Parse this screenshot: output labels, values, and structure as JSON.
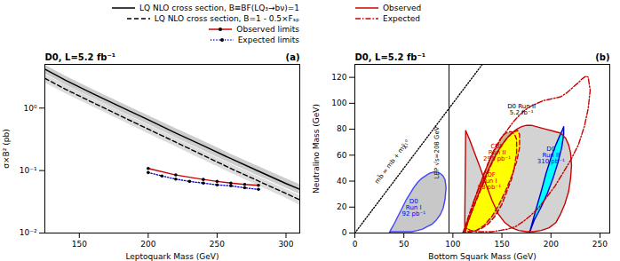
{
  "chart_data": [
    {
      "type": "line",
      "title": "D0, L=5.2 fb⁻¹",
      "annotations": [
        {
          "text": "(a)"
        }
      ],
      "xlabel": "Leptoquark Mass (GeV)",
      "ylabel": "σ×B² (pb)",
      "log": "y",
      "xlim": [
        125,
        310
      ],
      "xticks": [
        150,
        200,
        250,
        300
      ],
      "ylim": [
        0.01,
        5.011872336272722
      ],
      "yticks": [
        {
          "value": 0.01,
          "label": "10⁻²"
        },
        {
          "value": 0.1,
          "label": "10⁻¹"
        },
        {
          "value": 1,
          "label": "10⁰"
        }
      ],
      "grid": false,
      "legend": "upper right",
      "series": [
        {
          "type": "band",
          "color": "#cccccc",
          "x": [
            125,
            140,
            160,
            180,
            200,
            220,
            240,
            260,
            280,
            300,
            310
          ],
          "lower": [
            3.55,
            2.35,
            1.43,
            0.88,
            0.545,
            0.335,
            0.208,
            0.129,
            0.082,
            0.052,
            0.042
          ],
          "upper": [
            4.9,
            3.25,
            1.98,
            1.22,
            0.76,
            0.47,
            0.295,
            0.183,
            0.116,
            0.074,
            0.06
          ]
        },
        {
          "type": "band",
          "color": "#dddddd",
          "x": [
            125,
            140,
            160,
            180,
            200,
            220,
            240,
            260,
            280,
            300,
            310
          ],
          "lower": [
            2.55,
            1.7,
            1.04,
            0.638,
            0.39,
            0.241,
            0.148,
            0.091,
            0.057,
            0.036,
            0.028
          ],
          "upper": [
            3.45,
            2.32,
            1.41,
            0.87,
            0.535,
            0.33,
            0.203,
            0.126,
            0.079,
            0.05,
            0.04
          ]
        },
        {
          "name": "LQ NLO cross section, B≡BF(LQ₃→bν)=1",
          "type": "line",
          "color": "#000000",
          "line_style": "solid",
          "x": [
            125,
            140,
            160,
            180,
            200,
            220,
            240,
            260,
            280,
            300,
            310
          ],
          "values": [
            4.2,
            2.8,
            1.7,
            1.05,
            0.65,
            0.4,
            0.25,
            0.155,
            0.098,
            0.062,
            0.05
          ]
        },
        {
          "name": "LQ NLO cross section, B=1 - 0.5×Fₛₚ",
          "type": "line",
          "color": "#000000",
          "line_style": "dashed",
          "x": [
            125,
            140,
            160,
            180,
            200,
            220,
            240,
            260,
            280,
            300,
            310
          ],
          "values": [
            3.0,
            2.0,
            1.22,
            0.75,
            0.46,
            0.285,
            0.175,
            0.108,
            0.068,
            0.043,
            0.034
          ]
        },
        {
          "name": "Observed limits",
          "type": "line",
          "color": "#cc0000",
          "line_style": "solid",
          "marker": "dot",
          "x": [
            200,
            220,
            240,
            250,
            260,
            270,
            280
          ],
          "values": [
            0.108,
            0.085,
            0.072,
            0.067,
            0.063,
            0.06,
            0.058
          ]
        },
        {
          "name": "Expected limits",
          "type": "line",
          "color": "#0000cc",
          "line_style": "dotted",
          "marker": "dot",
          "x": [
            200,
            210,
            220,
            230,
            240,
            250,
            260,
            270,
            280
          ],
          "values": [
            0.093,
            0.082,
            0.073,
            0.067,
            0.063,
            0.059,
            0.057,
            0.053,
            0.05
          ]
        }
      ]
    },
    {
      "type": "polygon",
      "title": "D0, L=5.2 fb⁻¹",
      "annotations": [
        {
          "text": "(b)"
        },
        {
          "text": "D0 Run II\n5.2 fb⁻¹",
          "x": 170,
          "y": 95,
          "color": "#000000"
        },
        {
          "text": "D0\nRun II\n310 pb⁻¹",
          "x": 200,
          "y": 60,
          "color": "#0000ff"
        },
        {
          "text": "CDF\nRun I\n88 pb⁻¹",
          "x": 137,
          "y": 40,
          "color": "#cc0000"
        },
        {
          "text": "CDF\nRun II\n295 pb⁻¹",
          "x": 145,
          "y": 62,
          "color": "#cc0000"
        },
        {
          "text": "D0\nRun I\n92 pb⁻¹",
          "x": 60,
          "y": 20,
          "color": "#0000ff"
        }
      ],
      "xlabel": "Bottom Squark Mass (GeV)",
      "ylabel": "Neutralino Mass (GeV)",
      "xlim": [
        0,
        260
      ],
      "xticks": [
        0,
        50,
        100,
        150,
        200,
        250
      ],
      "ylim": [
        0,
        130
      ],
      "yticks": [
        0,
        20,
        40,
        60,
        80,
        100,
        120
      ],
      "grid": false,
      "legend": "upper left",
      "series": [
        {
          "type": "line",
          "color": "#000000",
          "line_style": "dotted",
          "x": [
            0,
            130
          ],
          "values": [
            0,
            130
          ],
          "label": {
            "text": "mb̃ = mb + mχ̃₁⁰",
            "x": 38,
            "y": 55
          }
        },
        {
          "type": "polygon",
          "color": "#d3d3d3",
          "x": [
            112,
            115,
            120,
            125,
            130,
            135,
            140,
            145,
            150,
            155,
            160,
            165,
            170,
            175,
            180,
            185,
            190,
            195,
            200,
            205,
            210,
            215,
            218,
            220,
            221,
            220,
            218,
            214,
            210,
            205,
            198,
            190,
            182,
            175,
            167,
            160,
            153,
            146,
            140,
            134,
            128,
            122,
            117,
            113,
            112
          ],
          "values": [
            0,
            8,
            18,
            28,
            38,
            47,
            55,
            62,
            68,
            73,
            77,
            80,
            82,
            83,
            83,
            82,
            81,
            80,
            79,
            78,
            77,
            73,
            68,
            62,
            52,
            42,
            32,
            22,
            15,
            8,
            4,
            2,
            1,
            1,
            2,
            4,
            8,
            15,
            25,
            37,
            50,
            62,
            72,
            79,
            0
          ]
        },
        {
          "type": "polygon",
          "color": "#c8c8c8",
          "x": [
            35,
            37,
            40,
            44,
            48,
            52,
            56,
            60,
            64,
            68,
            72,
            76,
            80,
            84,
            87,
            90,
            92,
            93,
            92,
            90,
            87,
            83,
            79,
            74,
            69,
            64,
            58,
            52,
            46,
            40,
            37,
            35
          ],
          "values": [
            0,
            3,
            7,
            13,
            19,
            25,
            30,
            35,
            39,
            42,
            44,
            46,
            47,
            47,
            46,
            44,
            41,
            35,
            26,
            19,
            14,
            10,
            7,
            5,
            3,
            2,
            1,
            1,
            1,
            1,
            1,
            0
          ]
        },
        {
          "type": "polygon",
          "color": "#c8b48a",
          "x": [
            110,
            113,
            116,
            120,
            124,
            128,
            132,
            136,
            140,
            144,
            148,
            152,
            156,
            160,
            163,
            165,
            165,
            163,
            160,
            155,
            150,
            143,
            136,
            128,
            120,
            113,
            110
          ],
          "values": [
            0,
            6,
            13,
            21,
            30,
            38,
            46,
            54,
            61,
            67,
            72,
            76,
            78,
            78,
            76,
            72,
            62,
            52,
            42,
            32,
            22,
            13,
            7,
            3,
            1,
            1,
            0
          ]
        },
        {
          "type": "polygon",
          "color": "#ffff00",
          "x": [
            112,
            115,
            120,
            126,
            132,
            138,
            144,
            150,
            156,
            162,
            166,
            168,
            168,
            165,
            160,
            154,
            147,
            140,
            132,
            124,
            116,
            112
          ],
          "values": [
            0,
            8,
            18,
            29,
            40,
            51,
            60,
            68,
            74,
            78,
            79,
            76,
            66,
            55,
            44,
            33,
            22,
            13,
            6,
            2,
            1,
            0
          ]
        },
        {
          "type": "polygon",
          "color": "#00ffff",
          "x": [
            178,
            181,
            185,
            190,
            195,
            200,
            205,
            209,
            212,
            213,
            213,
            211,
            207,
            202,
            196,
            190,
            183,
            178
          ],
          "values": [
            0,
            8,
            19,
            32,
            46,
            58,
            68,
            75,
            80,
            82,
            76,
            66,
            54,
            42,
            30,
            20,
            10,
            0
          ]
        },
        {
          "type": "line",
          "color": "#4444ff",
          "line_style": "solid",
          "x": [
            35,
            37,
            40,
            44,
            48,
            52,
            56,
            60,
            64,
            68,
            72,
            76,
            80,
            84,
            87,
            90,
            92,
            93,
            92,
            90,
            87,
            83,
            79,
            74,
            69,
            64,
            58,
            52,
            46,
            40,
            37,
            35
          ],
          "values": [
            0,
            3,
            7,
            13,
            19,
            25,
            30,
            35,
            39,
            42,
            44,
            46,
            47,
            47,
            46,
            44,
            41,
            35,
            26,
            19,
            14,
            10,
            7,
            5,
            3,
            2,
            1,
            1,
            1,
            1,
            1,
            0
          ]
        },
        {
          "type": "line",
          "color": "#cc0000",
          "line_style": "dashed",
          "x": [
            110,
            113,
            116,
            120,
            124,
            128,
            132,
            136,
            140,
            144,
            148,
            152,
            156,
            160,
            163,
            165,
            165,
            163,
            160,
            155,
            150,
            143,
            136,
            128,
            120,
            113,
            110
          ],
          "values": [
            0,
            6,
            13,
            21,
            30,
            38,
            46,
            54,
            61,
            67,
            72,
            76,
            78,
            78,
            76,
            72,
            62,
            52,
            42,
            32,
            22,
            13,
            7,
            3,
            1,
            1,
            0
          ]
        },
        {
          "type": "line",
          "color": "#cc0000",
          "line_style": "dashed",
          "x": [
            112,
            115,
            120,
            126,
            132,
            138,
            144,
            150,
            156,
            162,
            166,
            168,
            168,
            165,
            160,
            154,
            147,
            140,
            132,
            124,
            116,
            112
          ],
          "values": [
            0,
            8,
            18,
            29,
            40,
            51,
            60,
            68,
            74,
            78,
            79,
            76,
            66,
            55,
            44,
            33,
            22,
            13,
            6,
            2,
            1,
            0
          ]
        },
        {
          "type": "line",
          "color": "#0000cc",
          "line_style": "solid",
          "x": [
            178,
            181,
            185,
            190,
            195,
            200,
            205,
            209,
            212,
            213,
            213,
            211,
            207,
            202,
            196,
            190,
            183,
            178
          ],
          "values": [
            0,
            8,
            19,
            32,
            46,
            58,
            68,
            75,
            80,
            82,
            76,
            66,
            54,
            42,
            30,
            20,
            10,
            0
          ]
        },
        {
          "name": "Observed",
          "type": "line",
          "color": "#cc0000",
          "line_style": "solid",
          "x": [
            112,
            115,
            120,
            125,
            130,
            135,
            140,
            145,
            150,
            155,
            160,
            165,
            170,
            175,
            180,
            185,
            190,
            195,
            200,
            205,
            210,
            215,
            218,
            220,
            221,
            220,
            218,
            214,
            210,
            205,
            198,
            190,
            182,
            175,
            167,
            160,
            153,
            146,
            140,
            134,
            128,
            122,
            117,
            113,
            112
          ],
          "values": [
            0,
            8,
            18,
            28,
            38,
            47,
            55,
            62,
            68,
            73,
            77,
            80,
            82,
            83,
            83,
            82,
            81,
            80,
            79,
            78,
            77,
            73,
            68,
            62,
            52,
            42,
            32,
            22,
            15,
            8,
            4,
            2,
            1,
            1,
            2,
            4,
            8,
            15,
            25,
            37,
            50,
            62,
            72,
            79,
            0
          ]
        },
        {
          "name": "Expected",
          "type": "line",
          "color": "#cc0000",
          "line_style": "dashdot",
          "x": [
            112,
            115,
            120,
            126,
            132,
            138,
            144,
            150,
            156,
            162,
            168,
            174,
            180,
            186,
            192,
            198,
            204,
            210,
            216,
            222,
            228,
            232,
            236,
            238,
            240,
            238,
            234,
            228,
            220,
            212,
            204,
            196,
            188,
            180,
            172,
            164,
            156,
            148,
            140,
            132,
            124,
            118,
            113,
            112
          ],
          "values": [
            0,
            10,
            22,
            34,
            46,
            57,
            66,
            74,
            80,
            86,
            91,
            95,
            98,
            100,
            102,
            103,
            104,
            105,
            108,
            112,
            116,
            119,
            121,
            120,
            110,
            96,
            82,
            68,
            56,
            46,
            36,
            28,
            20,
            14,
            9,
            5,
            3,
            2,
            1,
            1,
            1,
            2,
            4,
            0
          ]
        },
        {
          "type": "vline",
          "color": "#000000",
          "line_style": "solid",
          "x": 96,
          "label": {
            "text": "LEP √s=208 GeV",
            "x": 84,
            "y": 62
          }
        }
      ]
    }
  ]
}
